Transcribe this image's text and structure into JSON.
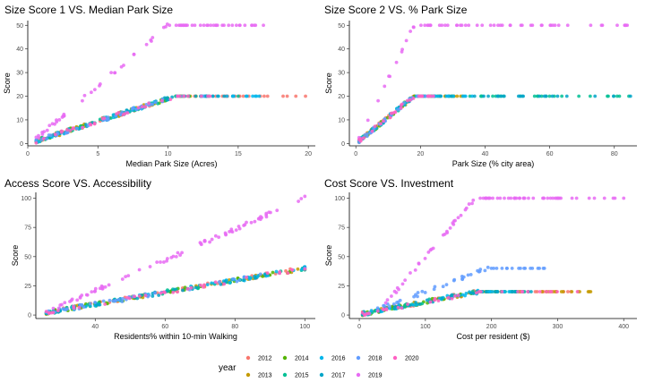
{
  "legend": {
    "title": "year",
    "entries": [
      {
        "label": "2012",
        "color": "#F8766D"
      },
      {
        "label": "2013",
        "color": "#C49A00"
      },
      {
        "label": "2014",
        "color": "#53B400"
      },
      {
        "label": "2015",
        "color": "#00C094"
      },
      {
        "label": "2016",
        "color": "#00B6EB"
      },
      {
        "label": "2017",
        "color": "#00A5C8"
      },
      {
        "label": "2018",
        "color": "#619CFF"
      },
      {
        "label": "2019",
        "color": "#E76BF3"
      },
      {
        "label": "2020",
        "color": "#FF61C3"
      }
    ]
  },
  "chart_data": [
    {
      "type": "scatter",
      "title": "Size Score 1 VS. Median Park Size",
      "xlabel": "Median Park Size (Acres)",
      "ylabel": "Score",
      "xlim": [
        0,
        20.5
      ],
      "ylim": [
        -1,
        52
      ],
      "xticks": [
        0,
        5,
        10,
        15,
        20
      ],
      "yticks": [
        0,
        10,
        20,
        30,
        40,
        50
      ],
      "grid": false,
      "series": [
        {
          "name": "2012",
          "trend": [
            [
              0.6,
              1
            ],
            [
              10.5,
              20
            ],
            [
              19.8,
              20
            ]
          ],
          "count": 45,
          "seed": 11
        },
        {
          "name": "2013",
          "trend": [
            [
              0.6,
              1
            ],
            [
              10.5,
              20
            ],
            [
              12,
              20
            ]
          ],
          "count": 40,
          "seed": 12
        },
        {
          "name": "2014",
          "trend": [
            [
              0.6,
              1
            ],
            [
              10.5,
              20
            ],
            [
              11.5,
              20
            ]
          ],
          "count": 40,
          "seed": 13
        },
        {
          "name": "2015",
          "trend": [
            [
              0.6,
              1
            ],
            [
              10.5,
              20
            ],
            [
              15,
              20
            ]
          ],
          "count": 40,
          "seed": 14
        },
        {
          "name": "2016",
          "trend": [
            [
              0.6,
              1
            ],
            [
              10.5,
              20
            ],
            [
              16.5,
              20
            ]
          ],
          "count": 40,
          "seed": 15
        },
        {
          "name": "2017",
          "trend": [
            [
              0.6,
              1
            ],
            [
              10.5,
              20
            ],
            [
              14,
              20
            ]
          ],
          "count": 40,
          "seed": 16
        },
        {
          "name": "2018",
          "trend": [
            [
              0.6,
              1
            ],
            [
              10.5,
              20
            ],
            [
              12.5,
              20
            ]
          ],
          "count": 40,
          "seed": 17
        },
        {
          "name": "2019",
          "trend": [
            [
              0.6,
              2
            ],
            [
              10,
              50
            ],
            [
              16.8,
              50
            ]
          ],
          "count": 75,
          "seed": 18
        },
        {
          "name": "2020",
          "trend": [
            [
              0.6,
              1
            ],
            [
              10.5,
              20
            ],
            [
              13,
              20
            ]
          ],
          "count": 35,
          "seed": 19
        }
      ]
    },
    {
      "type": "scatter",
      "title": "Size Score 2 VS. % Park Size",
      "xlabel": "Park Size (% city area)",
      "ylabel": "Score",
      "xlim": [
        -2,
        87
      ],
      "ylim": [
        -1,
        52
      ],
      "xticks": [
        0,
        20,
        40,
        60,
        80
      ],
      "yticks": [
        0,
        10,
        20,
        30,
        40,
        50
      ],
      "grid": false,
      "series": [
        {
          "name": "2012",
          "trend": [
            [
              1,
              1
            ],
            [
              18,
              20
            ],
            [
              24,
              20
            ]
          ],
          "count": 35,
          "seed": 21
        },
        {
          "name": "2013",
          "trend": [
            [
              1,
              1
            ],
            [
              18,
              20
            ],
            [
              33,
              20
            ]
          ],
          "count": 35,
          "seed": 22
        },
        {
          "name": "2014",
          "trend": [
            [
              1,
              1
            ],
            [
              18,
              20
            ],
            [
              24,
              20
            ]
          ],
          "count": 35,
          "seed": 23
        },
        {
          "name": "2015",
          "trend": [
            [
              1,
              1
            ],
            [
              18,
              20
            ],
            [
              84.5,
              20
            ]
          ],
          "count": 35,
          "seed": 24
        },
        {
          "name": "2016",
          "trend": [
            [
              1,
              1
            ],
            [
              18,
              20
            ],
            [
              36,
              20
            ]
          ],
          "count": 35,
          "seed": 25
        },
        {
          "name": "2017",
          "trend": [
            [
              1,
              1
            ],
            [
              18,
              20
            ],
            [
              85,
              20
            ]
          ],
          "count": 35,
          "seed": 26
        },
        {
          "name": "2018",
          "trend": [
            [
              1,
              1
            ],
            [
              18,
              20
            ],
            [
              24,
              20
            ]
          ],
          "count": 35,
          "seed": 27
        },
        {
          "name": "2019",
          "trend": [
            [
              1,
              2
            ],
            [
              18,
              50
            ],
            [
              84,
              50
            ]
          ],
          "count": 60,
          "seed": 28
        },
        {
          "name": "2020",
          "trend": [
            [
              1,
              1
            ],
            [
              18,
              20
            ],
            [
              24,
              20
            ]
          ],
          "count": 30,
          "seed": 29
        }
      ]
    },
    {
      "type": "scatter",
      "title": "Access Score VS. Accessibility",
      "xlabel": "Residents% within 10-min Walking",
      "ylabel": "Score",
      "xlim": [
        23,
        103
      ],
      "ylim": [
        -3,
        105
      ],
      "xticks": [
        40,
        60,
        80,
        100
      ],
      "yticks": [
        0,
        25,
        50,
        75,
        100
      ],
      "grid": false,
      "series": [
        {
          "name": "2012",
          "trend": [
            [
              26,
              2
            ],
            [
              100,
              40
            ]
          ],
          "count": 40,
          "seed": 31
        },
        {
          "name": "2013",
          "trend": [
            [
              26,
              2
            ],
            [
              100,
              40
            ]
          ],
          "count": 40,
          "seed": 32
        },
        {
          "name": "2014",
          "trend": [
            [
              26,
              2
            ],
            [
              100,
              40
            ]
          ],
          "count": 40,
          "seed": 33
        },
        {
          "name": "2015",
          "trend": [
            [
              26,
              2
            ],
            [
              100,
              40
            ]
          ],
          "count": 40,
          "seed": 34
        },
        {
          "name": "2016",
          "trend": [
            [
              26,
              2
            ],
            [
              100,
              40
            ]
          ],
          "count": 40,
          "seed": 35
        },
        {
          "name": "2017",
          "trend": [
            [
              26,
              2
            ],
            [
              100,
              40
            ]
          ],
          "count": 40,
          "seed": 36
        },
        {
          "name": "2018",
          "trend": [
            [
              26,
              2
            ],
            [
              100,
              40
            ]
          ],
          "count": 40,
          "seed": 37
        },
        {
          "name": "2019",
          "trend": [
            [
              28,
              5
            ],
            [
              100,
              100
            ]
          ],
          "count": 80,
          "seed": 38
        },
        {
          "name": "2020",
          "trend": [
            [
              26,
              2
            ],
            [
              100,
              40
            ]
          ],
          "count": 35,
          "seed": 39
        }
      ]
    },
    {
      "type": "scatter",
      "title": "Cost Score VS. Investment",
      "xlabel": "Cost per resident ($)",
      "ylabel": "Score",
      "xlim": [
        -15,
        420
      ],
      "ylim": [
        -3,
        105
      ],
      "xticks": [
        0,
        100,
        200,
        300,
        400
      ],
      "yticks": [
        0,
        25,
        50,
        75,
        100
      ],
      "grid": false,
      "series": [
        {
          "name": "2012",
          "trend": [
            [
              5,
              1
            ],
            [
              180,
              20
            ],
            [
              320,
              20
            ]
          ],
          "count": 45,
          "seed": 41
        },
        {
          "name": "2013",
          "trend": [
            [
              5,
              1
            ],
            [
              180,
              20
            ],
            [
              350,
              20
            ]
          ],
          "count": 45,
          "seed": 42
        },
        {
          "name": "2014",
          "trend": [
            [
              5,
              1
            ],
            [
              180,
              20
            ],
            [
              240,
              20
            ]
          ],
          "count": 40,
          "seed": 43
        },
        {
          "name": "2015",
          "trend": [
            [
              5,
              1
            ],
            [
              180,
              20
            ],
            [
              250,
              20
            ]
          ],
          "count": 40,
          "seed": 44
        },
        {
          "name": "2016",
          "trend": [
            [
              5,
              1
            ],
            [
              180,
              20
            ],
            [
              230,
              20
            ]
          ],
          "count": 40,
          "seed": 45
        },
        {
          "name": "2017",
          "trend": [
            [
              5,
              1
            ],
            [
              180,
              20
            ],
            [
              260,
              20
            ]
          ],
          "count": 40,
          "seed": 46
        },
        {
          "name": "2018",
          "trend": [
            [
              10,
              1
            ],
            [
              195,
              40
            ],
            [
              280,
              40
            ]
          ],
          "count": 55,
          "seed": 47
        },
        {
          "name": "2019",
          "trend": [
            [
              40,
              10
            ],
            [
              175,
              100
            ],
            [
              400,
              100
            ]
          ],
          "count": 80,
          "seed": 48
        },
        {
          "name": "2020",
          "trend": [
            [
              5,
              1
            ],
            [
              180,
              20
            ],
            [
              330,
              20
            ]
          ],
          "count": 35,
          "seed": 49
        }
      ]
    }
  ]
}
